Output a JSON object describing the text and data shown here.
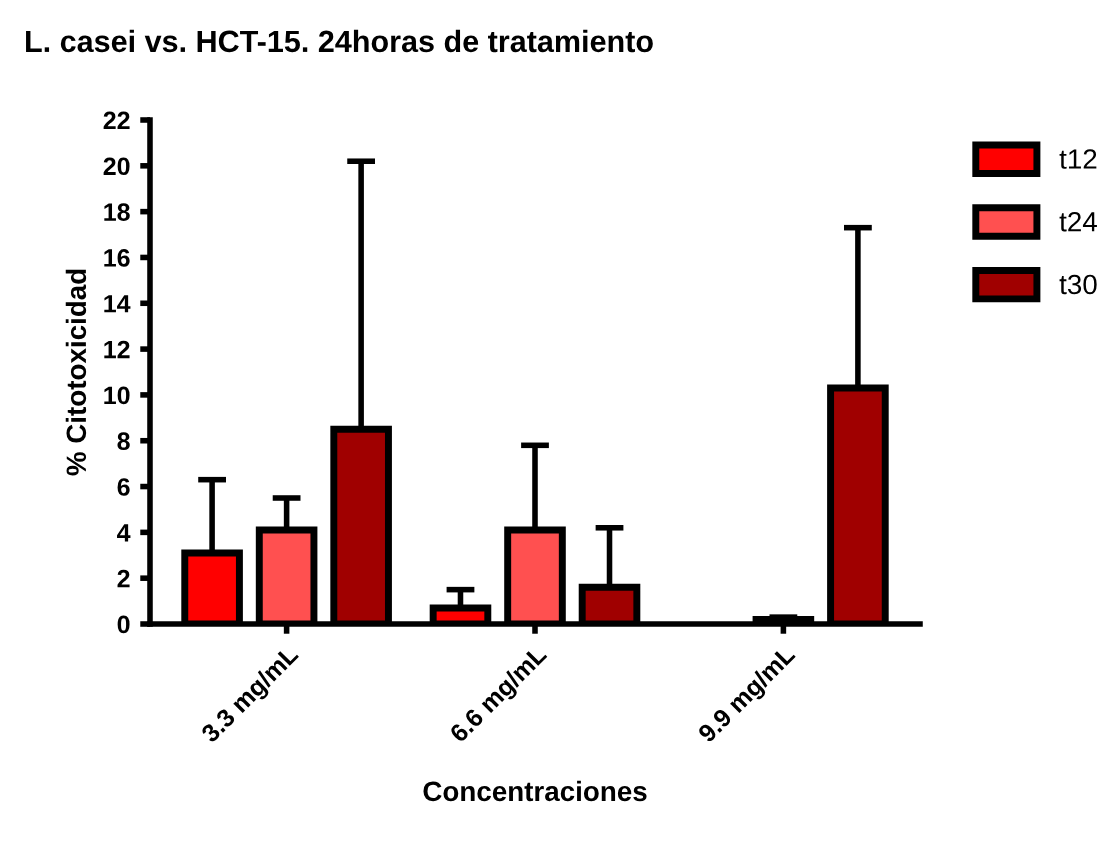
{
  "chart_data": {
    "type": "bar",
    "title": "L. casei vs. HCT-15. 24horas de tratamiento",
    "xlabel": "Concentraciones",
    "ylabel": "% Citotoxicidad",
    "categories": [
      "3.3 mg/mL",
      "6.6 mg/mL",
      "9.9 mg/mL"
    ],
    "series": [
      {
        "name": "t12",
        "color": "#ff0000",
        "values": [
          3.1,
          0.7,
          null
        ],
        "errors": [
          [
            3.1,
            6.3
          ],
          [
            0.7,
            1.5
          ],
          null
        ]
      },
      {
        "name": "t24",
        "color": "#ff5050",
        "values": [
          4.1,
          4.1,
          0.2
        ],
        "errors": [
          [
            4.1,
            5.5
          ],
          [
            4.1,
            7.8
          ],
          [
            0.2,
            0.3
          ]
        ]
      },
      {
        "name": "t30",
        "color": "#a00000",
        "values": [
          8.5,
          1.6,
          10.3
        ],
        "errors": [
          [
            8.5,
            20.2
          ],
          [
            1.6,
            4.2
          ],
          [
            10.3,
            17.3
          ]
        ]
      }
    ],
    "ylim": [
      0,
      22
    ],
    "yticks": [
      0,
      2,
      4,
      6,
      8,
      10,
      12,
      14,
      16,
      18,
      20,
      22
    ],
    "grid": false,
    "legend": "top right"
  }
}
